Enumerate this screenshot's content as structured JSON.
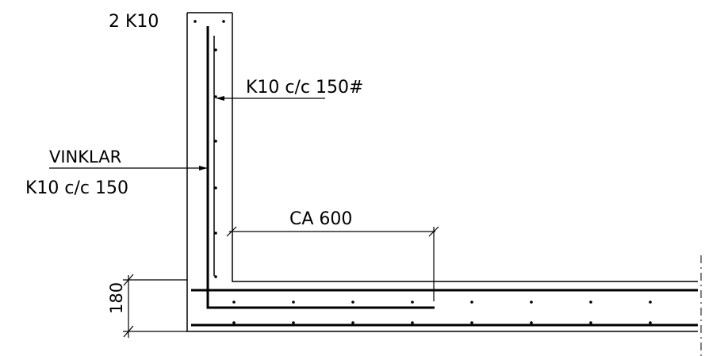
{
  "labels": {
    "top_bars": "2 K10",
    "wall_bars": "K10 c/c 150#",
    "stirrups_title": "VINKLAR",
    "stirrups_spec": "K10 c/c 150",
    "lap_length": "CA 600",
    "slab_thickness": "180"
  }
}
